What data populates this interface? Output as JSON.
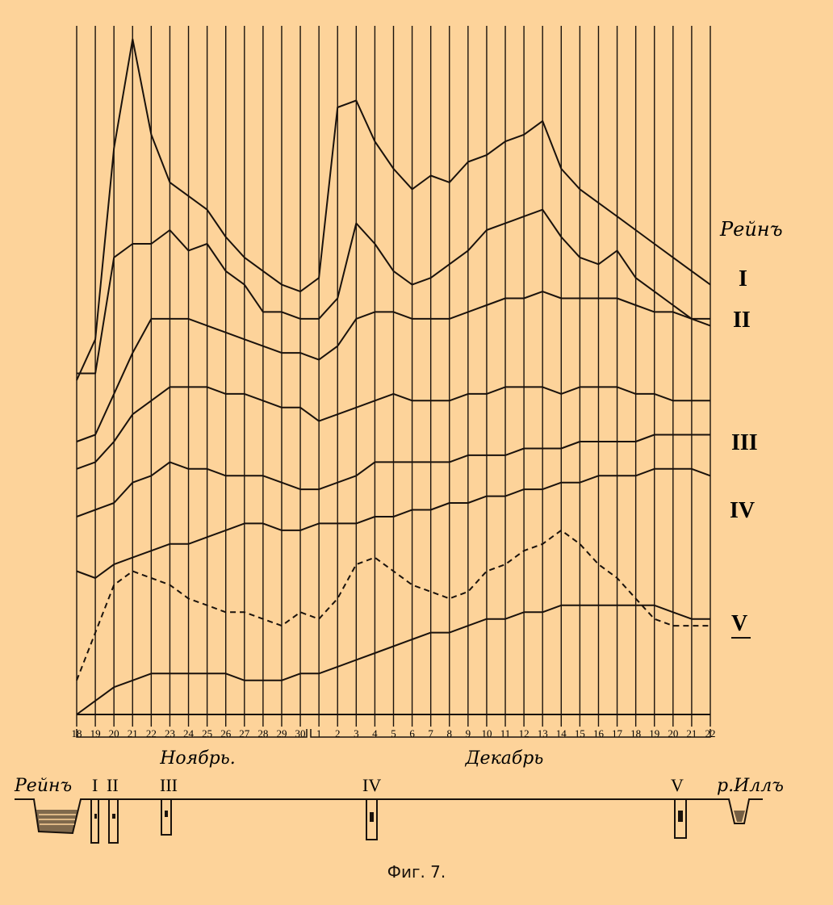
{
  "caption": "Фиг. 7.",
  "chart_data": {
    "type": "line",
    "x": [
      "18",
      "19",
      "20",
      "21",
      "22",
      "23",
      "24",
      "25",
      "26",
      "27",
      "28",
      "29",
      "30",
      "1",
      "2",
      "3",
      "4",
      "5",
      "6",
      "7",
      "8",
      "9",
      "10",
      "11",
      "12",
      "13",
      "14",
      "15",
      "16",
      "17",
      "18",
      "19",
      "20",
      "21",
      "22"
    ],
    "x_tick_labels": [
      "18",
      "19",
      "20",
      "21",
      "22",
      "23",
      "24",
      "25",
      "26",
      "27",
      "28",
      "29",
      "30",
      "1",
      "2",
      "3",
      "4",
      "5",
      "6",
      "7",
      "8",
      "9",
      "10",
      "11",
      "12",
      "13",
      "14",
      "15",
      "16",
      "17",
      "18",
      "19",
      "20",
      "21",
      "22"
    ],
    "month_labels": [
      "Ноябрь.",
      "Декабрь"
    ],
    "ylim": [
      0,
      100
    ],
    "grid": true,
    "series": [
      {
        "name": "Рейнъ",
        "dash": false,
        "values": [
          49,
          55,
          83,
          99,
          85,
          78,
          76,
          74,
          70,
          67,
          65,
          63,
          62,
          64,
          89,
          90,
          84,
          80,
          77,
          79,
          78,
          81,
          82,
          84,
          85,
          87,
          80,
          77,
          75,
          73,
          71,
          69,
          67,
          65,
          63
        ]
      },
      {
        "name": "I",
        "dash": false,
        "values": [
          50,
          50,
          67,
          69,
          69,
          71,
          68,
          69,
          65,
          63,
          59,
          59,
          58,
          58,
          61,
          72,
          69,
          65,
          63,
          64,
          66,
          68,
          71,
          72,
          73,
          74,
          70,
          67,
          66,
          68,
          64,
          62,
          60,
          58,
          57
        ]
      },
      {
        "name": "II",
        "dash": false,
        "values": [
          40,
          41,
          47,
          53,
          58,
          58,
          58,
          57,
          56,
          55,
          54,
          53,
          53,
          52,
          54,
          58,
          59,
          59,
          58,
          58,
          58,
          59,
          60,
          61,
          61,
          62,
          61,
          61,
          61,
          61,
          60,
          59,
          59,
          58,
          58
        ]
      },
      {
        "name": "III",
        "dash": false,
        "values": [
          36,
          37,
          40,
          44,
          46,
          48,
          48,
          48,
          47,
          47,
          46,
          45,
          45,
          43,
          44,
          45,
          46,
          47,
          46,
          46,
          46,
          47,
          47,
          48,
          48,
          48,
          47,
          48,
          48,
          48,
          47,
          47,
          46,
          46,
          46
        ]
      },
      {
        "name": "IV",
        "dash": false,
        "values": [
          29,
          30,
          31,
          34,
          35,
          37,
          36,
          36,
          35,
          35,
          35,
          34,
          33,
          33,
          34,
          35,
          37,
          37,
          37,
          37,
          37,
          38,
          38,
          38,
          39,
          39,
          39,
          40,
          40,
          40,
          40,
          41,
          41,
          41,
          41
        ]
      },
      {
        "name": "V",
        "dash": false,
        "values": [
          21,
          20,
          22,
          23,
          24,
          25,
          25,
          26,
          27,
          28,
          28,
          27,
          27,
          28,
          28,
          28,
          29,
          29,
          30,
          30,
          31,
          31,
          32,
          32,
          33,
          33,
          34,
          34,
          35,
          35,
          35,
          36,
          36,
          36,
          35
        ]
      },
      {
        "name": "",
        "dash": true,
        "values": [
          5,
          12,
          19,
          21,
          20,
          19,
          17,
          16,
          15,
          15,
          14,
          13,
          15,
          14,
          17,
          22,
          23,
          21,
          19,
          18,
          17,
          18,
          21,
          22,
          24,
          25,
          27,
          25,
          22,
          20,
          17,
          14,
          13,
          13,
          13
        ]
      },
      {
        "name": "",
        "dash": false,
        "values": [
          0,
          2,
          4,
          5,
          6,
          6,
          6,
          6,
          6,
          5,
          5,
          5,
          6,
          6,
          7,
          8,
          9,
          10,
          11,
          12,
          12,
          13,
          14,
          14,
          15,
          15,
          16,
          16,
          16,
          16,
          16,
          16,
          15,
          14,
          14
        ]
      }
    ]
  },
  "scheme": {
    "labels": [
      "Рейнъ",
      "I",
      "II",
      "III",
      "IV",
      "V",
      "р.Иллъ"
    ]
  }
}
